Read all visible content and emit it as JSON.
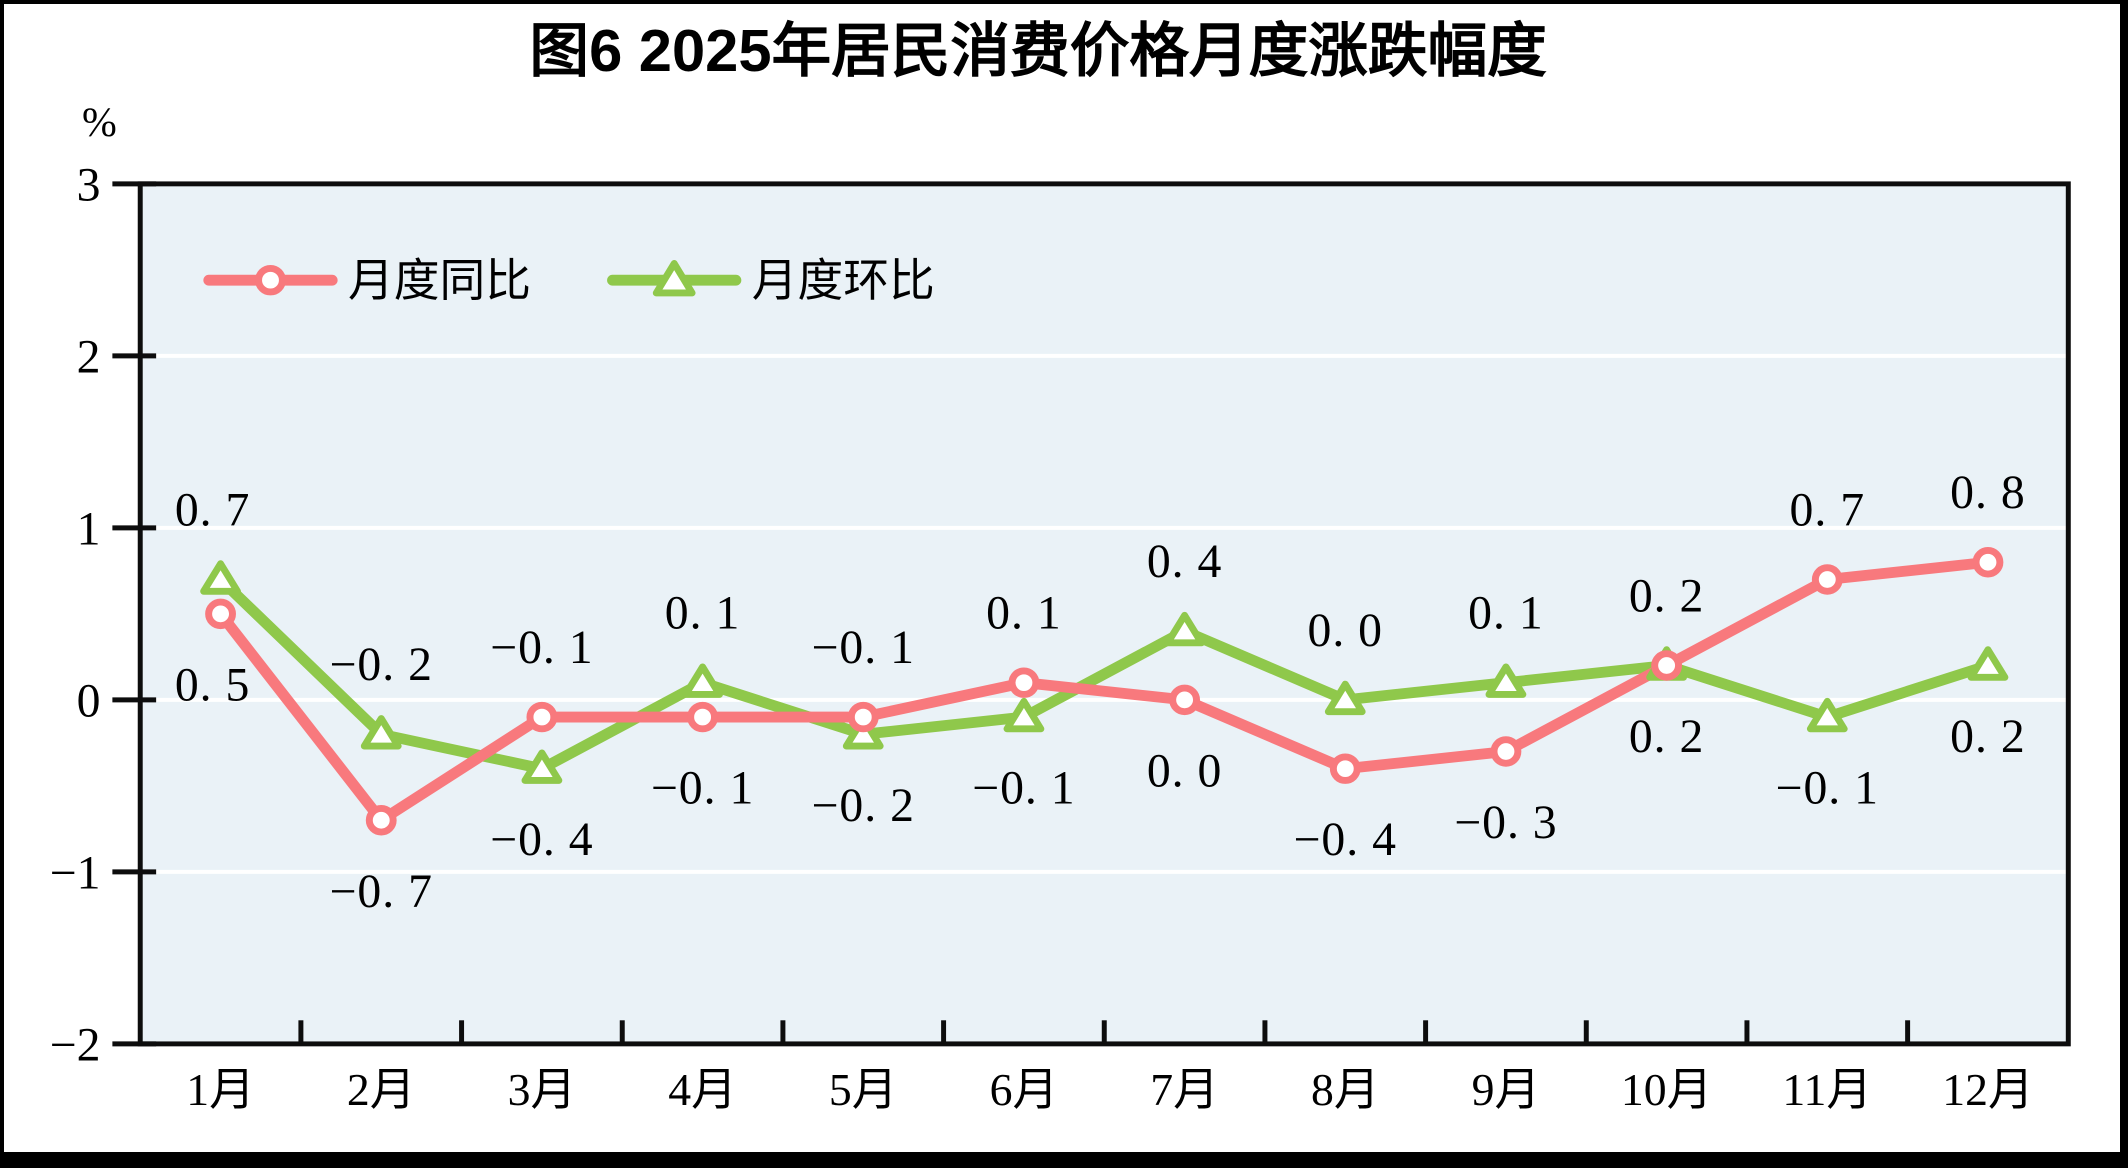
{
  "figure": {
    "title": "图6  2025年居民消费价格月度涨跌幅度",
    "unit_label": "%"
  },
  "legend": {
    "items": [
      {
        "label": "月度同比",
        "marker": "circle",
        "series_key": "yoy"
      },
      {
        "label": "月度环比",
        "marker": "triangle",
        "series_key": "mom"
      }
    ]
  },
  "colors": {
    "yoy": "#f8797d",
    "mom": "#8fc84b",
    "plot_bg": "#eaf2f7",
    "grid": "#ffffff",
    "axis": "#0d0d0d",
    "text": "#000000",
    "frame": "#000000"
  },
  "chart_data": {
    "type": "line",
    "title": "图6  2025年居民消费价格月度涨跌幅度",
    "categories": [
      "1月",
      "2月",
      "3月",
      "4月",
      "5月",
      "6月",
      "7月",
      "8月",
      "9月",
      "10月",
      "11月",
      "12月"
    ],
    "series": [
      {
        "name": "月度同比",
        "marker": "circle",
        "color": "#f8797d",
        "values": [
          0.5,
          -0.7,
          -0.1,
          -0.1,
          -0.1,
          0.1,
          0.0,
          -0.4,
          -0.3,
          0.2,
          0.7,
          0.8
        ],
        "label_side": [
          "below",
          "below",
          "above",
          "below",
          "above",
          "above",
          "below",
          "below",
          "below",
          "above",
          "above",
          "above"
        ]
      },
      {
        "name": "月度环比",
        "marker": "triangle",
        "color": "#8fc84b",
        "values": [
          0.7,
          -0.2,
          -0.4,
          0.1,
          -0.2,
          -0.1,
          0.4,
          0.0,
          0.1,
          0.2,
          -0.1,
          0.2
        ],
        "label_side": [
          "above",
          "above",
          "below",
          "above",
          "below",
          "below",
          "above",
          "above",
          "above",
          "below",
          "below",
          "below"
        ]
      }
    ],
    "ylabel": "%",
    "ylim": [
      -2,
      3
    ],
    "yticks": [
      3,
      2,
      1,
      0,
      -1,
      -2
    ],
    "grid": true,
    "gridline_values": [
      2,
      1,
      0,
      -1
    ],
    "legend_position": "top-left-inside"
  }
}
